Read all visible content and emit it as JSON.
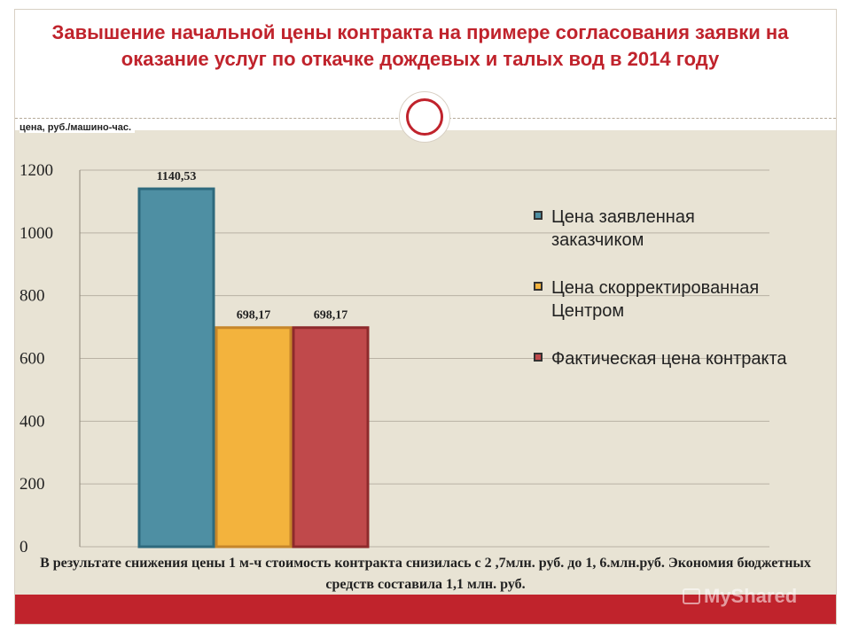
{
  "slide": {
    "title": "Завышение начальной цены контракта на примере согласования заявки на оказание услуг по откачке дождевых и талых вод в 2014 году",
    "unit_label": "цена, руб./машино-час.",
    "footer": "В результате снижения цены  1 м-ч стоимость контракта снизилась с 2 ,7млн. руб. до 1, 6.млн.руб. Экономия бюджетных средств составила 1,1 млн. руб.",
    "watermark": "MyShared"
  },
  "colors": {
    "title": "#c0232c",
    "accent_bar": "#c0232c",
    "background": "#e8e3d4"
  },
  "chart_data": {
    "type": "bar",
    "title": "",
    "xlabel": "",
    "ylabel": "цена, руб./машино-час.",
    "ylim": [
      0,
      1200
    ],
    "yticks": [
      0,
      200,
      400,
      600,
      800,
      1000,
      1200
    ],
    "grid": true,
    "legend_position": "right",
    "categories": [
      ""
    ],
    "series": [
      {
        "name": "Цена заявленная заказчиком",
        "values": [
          1140.53
        ],
        "label": "1140,53",
        "color": "#4e8fa3"
      },
      {
        "name": "Цена скорректированная Центром",
        "values": [
          698.17
        ],
        "label": "698,17",
        "color": "#f3b33d"
      },
      {
        "name": "Фактическая цена контракта",
        "values": [
          698.17
        ],
        "label": "698,17",
        "color": "#c0494b"
      }
    ]
  }
}
